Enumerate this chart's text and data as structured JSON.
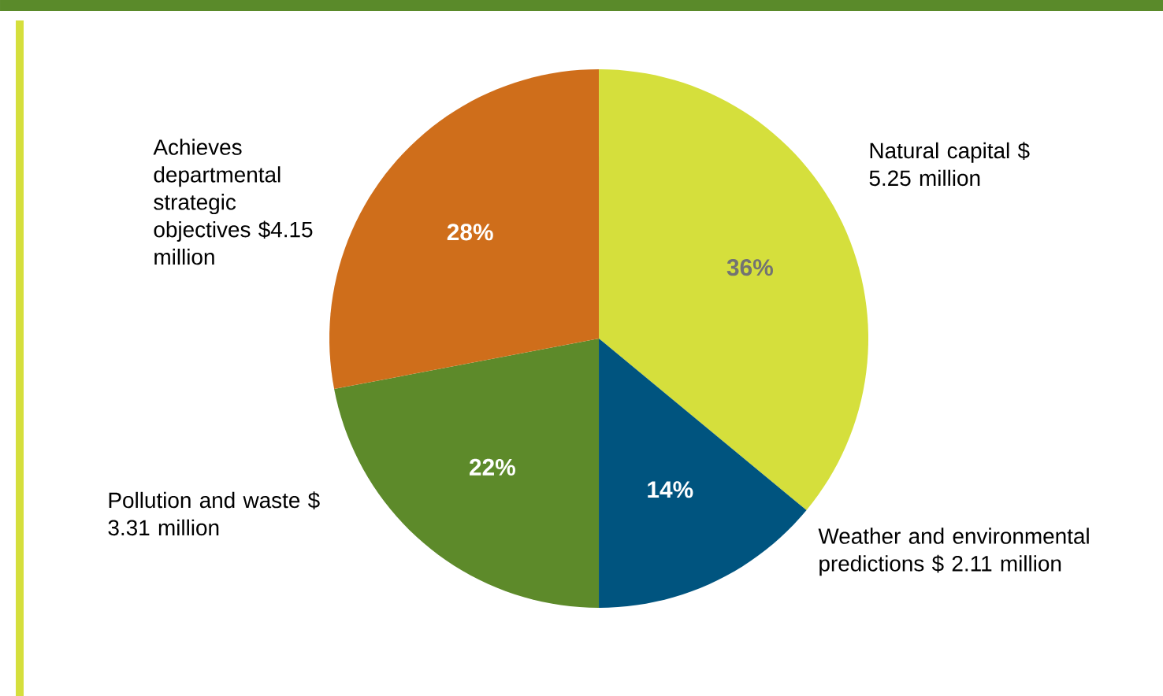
{
  "chart_data": {
    "type": "pie",
    "categories": [
      "Natural capital $ 5.25 million",
      "Weather and environmental predictions $ 2.11 million",
      "Pollution and waste $ 3.31 million",
      "Achieves departmental strategic objectives $4.15 million"
    ],
    "values": [
      36,
      14,
      22,
      28
    ],
    "value_labels": [
      "36%",
      "14%",
      "22%",
      "28%"
    ],
    "colors": [
      "#d5df3c",
      "#00547f",
      "#5d8a2a",
      "#cf6e1b"
    ]
  }
}
